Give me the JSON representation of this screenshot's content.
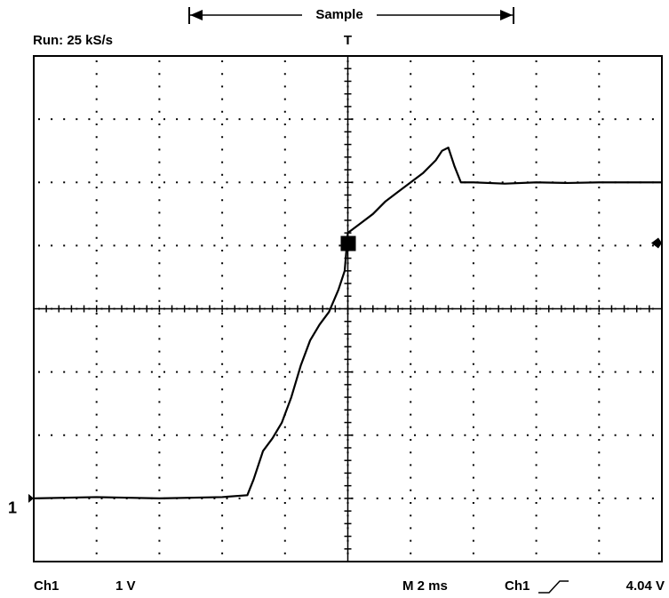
{
  "chart_data": {
    "type": "line",
    "header": "Sample",
    "run_status": "Run: 25 kS/s",
    "trigger_marker": "T",
    "channel_marker": "1",
    "channel": "Ch1",
    "volts_per_div": "1 V",
    "time_per_div": "M 2 ms",
    "trigger_source": "Ch1",
    "trigger_label": "4.04 V",
    "trigger_level": 4.04,
    "ground_level": 0,
    "x": [
      -10,
      -8,
      -6,
      -4,
      -3.2,
      -3.0,
      -2.7,
      -2.4,
      -2.1,
      -1.8,
      -1.5,
      -1.2,
      -0.9,
      -0.6,
      -0.3,
      -0.1,
      0,
      0.4,
      0.8,
      1.2,
      1.6,
      2.0,
      2.4,
      2.8,
      3.0,
      3.2,
      3.4,
      3.6,
      4,
      5,
      6,
      7,
      8,
      9,
      10
    ],
    "series": [
      {
        "name": "Ch1",
        "color": "#000000",
        "values": [
          0,
          0.02,
          0,
          0.02,
          0.05,
          0.3,
          0.75,
          0.95,
          1.2,
          1.6,
          2.1,
          2.5,
          2.75,
          2.95,
          3.3,
          3.6,
          4.2,
          4.35,
          4.5,
          4.7,
          4.85,
          5.0,
          5.15,
          5.35,
          5.5,
          5.55,
          5.25,
          5.0,
          5.0,
          4.98,
          5.0,
          4.99,
          5.0,
          5.0,
          5.0
        ]
      }
    ],
    "xlim": [
      -10,
      10
    ],
    "xticks": [
      -10,
      -8,
      -6,
      -4,
      -2,
      0,
      2,
      4,
      6,
      8,
      10
    ],
    "ylim": [
      -1,
      7
    ],
    "yticks": [
      -1,
      0,
      1,
      2,
      3,
      4,
      5,
      6,
      7
    ],
    "grid": true
  }
}
